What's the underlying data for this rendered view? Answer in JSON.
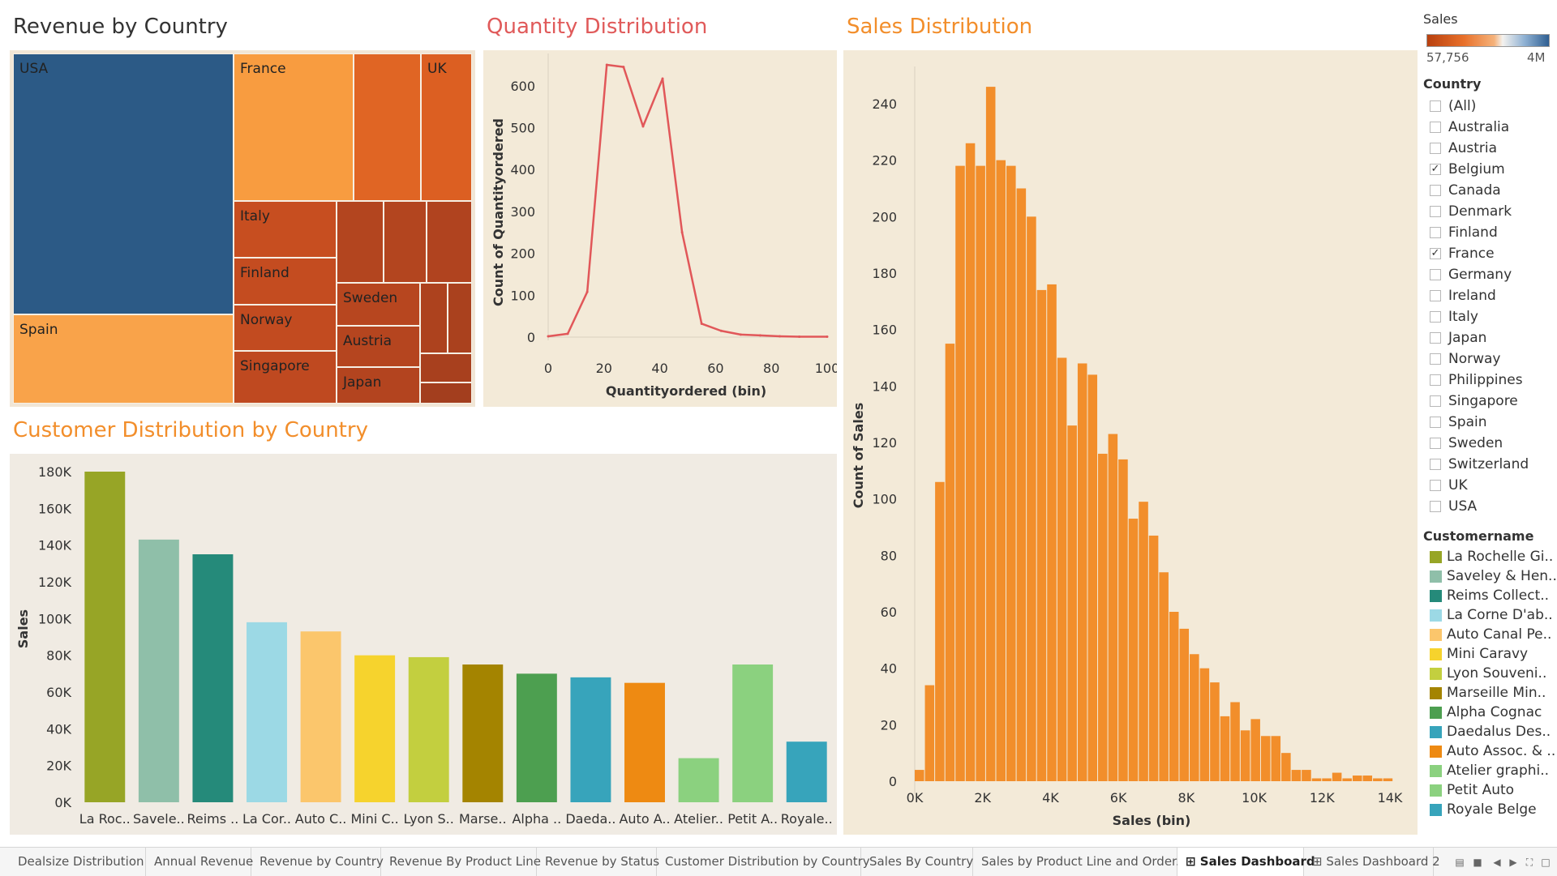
{
  "sheets": {
    "revenue_by_country": "Revenue by Country",
    "quantity_distribution": "Quantity Distribution",
    "sales_distribution": "Sales Distribution",
    "customer_distribution": "Customer Distribution by Country"
  },
  "colors": {
    "treemap_title": "#333333",
    "quantity_title": "#e05a5a",
    "sales_title": "#f28e2b",
    "customer_title": "#f28e2b"
  },
  "chart_data": [
    {
      "type": "treemap",
      "title": "Revenue by Country",
      "cells": [
        {
          "label": "USA",
          "color": "#2c5a86"
        },
        {
          "label": "France",
          "color": "#f89c40"
        },
        {
          "label": "",
          "color": "#e06524"
        },
        {
          "label": "UK",
          "color": "#dc5f22"
        },
        {
          "label": "Spain",
          "color": "#f9a34a"
        },
        {
          "label": "Italy",
          "color": "#c74e20"
        },
        {
          "label": "Finland",
          "color": "#c44c20"
        },
        {
          "label": "Norway",
          "color": "#c24b20"
        },
        {
          "label": "Singapore",
          "color": "#bf4920"
        },
        {
          "label": "",
          "color": "#b3451f"
        },
        {
          "label": "",
          "color": "#b3451f"
        },
        {
          "label": "",
          "color": "#b0431f"
        },
        {
          "label": "Sweden",
          "color": "#b7461f"
        },
        {
          "label": "Austria",
          "color": "#b5451f"
        },
        {
          "label": "Japan",
          "color": "#b3441f"
        },
        {
          "label": "",
          "color": "#ad421e"
        },
        {
          "label": "",
          "color": "#aa411e"
        },
        {
          "label": "",
          "color": "#a8401e"
        },
        {
          "label": "",
          "color": "#a33e1e"
        }
      ]
    },
    {
      "type": "line",
      "title": "Quantity Distribution",
      "xlabel": "Quantityordered (bin)",
      "ylabel": "Count of Quantityordered",
      "x": [
        0,
        7,
        14,
        21,
        27,
        34,
        41,
        48,
        55,
        62,
        69,
        76,
        83,
        90,
        100
      ],
      "y": [
        2,
        8,
        108,
        650,
        645,
        503,
        617,
        250,
        32,
        15,
        6,
        4,
        2,
        1,
        1
      ],
      "xlim": [
        0,
        100
      ],
      "ylim": [
        0,
        650
      ],
      "xticks": [
        "0",
        "20",
        "40",
        "60",
        "80",
        "100"
      ],
      "yticks": [
        "0",
        "100",
        "200",
        "300",
        "400",
        "500",
        "600"
      ],
      "color": "#e15759"
    },
    {
      "type": "bar",
      "title": "Sales Distribution",
      "xlabel": "Sales (bin)",
      "ylabel": "Count of Sales",
      "x_start": 0,
      "bin_width": 300,
      "values": [
        0,
        0,
        0,
        0,
        0,
        0,
        0,
        0,
        0,
        0,
        0,
        0,
        0,
        0,
        0,
        0,
        0,
        0,
        0,
        0,
        0,
        0,
        0,
        0,
        0,
        0,
        0,
        0,
        0,
        0,
        0,
        0,
        0,
        0,
        0,
        0,
        0,
        0,
        0,
        0,
        0,
        0,
        0,
        0,
        0,
        0,
        0
      ],
      "counts": [
        4,
        34,
        106,
        155,
        218,
        226,
        218,
        246,
        220,
        218,
        210,
        200,
        174,
        176,
        150,
        126,
        148,
        144,
        116,
        123,
        114,
        93,
        99,
        87,
        74,
        60,
        54,
        45,
        40,
        35,
        23,
        28,
        18,
        22,
        16,
        16,
        10,
        4,
        4,
        1,
        1,
        3,
        1,
        2,
        2,
        1,
        1
      ],
      "xticks": [
        "0K",
        "2K",
        "4K",
        "6K",
        "8K",
        "10K",
        "12K",
        "14K"
      ],
      "yticks": [
        "0",
        "20",
        "40",
        "60",
        "80",
        "100",
        "120",
        "140",
        "160",
        "180",
        "200",
        "220",
        "240"
      ],
      "xlim": [
        0,
        14000
      ],
      "ylim": [
        0,
        250
      ],
      "color": "#f28e2b"
    },
    {
      "type": "bar",
      "title": "Customer Distribution by Country",
      "xlabel": "",
      "ylabel": "Sales",
      "categories": [
        "La Roc..",
        "Savele..",
        "Reims ..",
        "La Cor..",
        "Auto C..",
        "Mini C..",
        "Lyon S..",
        "Marse..",
        "Alpha ..",
        "Daeda..",
        "Auto A..",
        "Atelier..",
        "Petit A..",
        "Royale.."
      ],
      "values": [
        180000,
        143000,
        135000,
        98000,
        93000,
        80000,
        79000,
        75000,
        70000,
        68000,
        65000,
        24000,
        75000,
        33000
      ],
      "colors": [
        "#97a526",
        "#8fbfa9",
        "#258a7a",
        "#9cd9e5",
        "#fbc66c",
        "#f6d32d",
        "#c3cf3f",
        "#a48400",
        "#4d9f50",
        "#37a4bb",
        "#ee8a12",
        "#8bd17f",
        "#8bd17f",
        "#37a4bb"
      ],
      "yticks": [
        "0K",
        "20K",
        "40K",
        "60K",
        "80K",
        "100K",
        "120K",
        "140K",
        "160K",
        "180K"
      ],
      "ylim": [
        0,
        180000
      ]
    }
  ],
  "legend": {
    "sales_title": "Sales",
    "sales_min": "57,756",
    "sales_max": "4M",
    "country_title": "Country",
    "countries": [
      {
        "label": "(All)",
        "checked": false
      },
      {
        "label": "Australia",
        "checked": false
      },
      {
        "label": "Austria",
        "checked": false
      },
      {
        "label": "Belgium",
        "checked": true
      },
      {
        "label": "Canada",
        "checked": false
      },
      {
        "label": "Denmark",
        "checked": false
      },
      {
        "label": "Finland",
        "checked": false
      },
      {
        "label": "France",
        "checked": true
      },
      {
        "label": "Germany",
        "checked": false
      },
      {
        "label": "Ireland",
        "checked": false
      },
      {
        "label": "Italy",
        "checked": false
      },
      {
        "label": "Japan",
        "checked": false
      },
      {
        "label": "Norway",
        "checked": false
      },
      {
        "label": "Philippines",
        "checked": false
      },
      {
        "label": "Singapore",
        "checked": false
      },
      {
        "label": "Spain",
        "checked": false
      },
      {
        "label": "Sweden",
        "checked": false
      },
      {
        "label": "Switzerland",
        "checked": false
      },
      {
        "label": "UK",
        "checked": false
      },
      {
        "label": "USA",
        "checked": false
      }
    ],
    "customer_title": "Customername",
    "customers": [
      {
        "label": "La Rochelle Gi..",
        "color": "#97a526"
      },
      {
        "label": "Saveley & Hen..",
        "color": "#8fbfa9"
      },
      {
        "label": "Reims Collect..",
        "color": "#258a7a"
      },
      {
        "label": "La Corne D'ab..",
        "color": "#9cd9e5"
      },
      {
        "label": "Auto Canal Pe..",
        "color": "#fbc66c"
      },
      {
        "label": "Mini Caravy",
        "color": "#f6d32d"
      },
      {
        "label": "Lyon Souveni..",
        "color": "#c3cf3f"
      },
      {
        "label": "Marseille Min..",
        "color": "#a48400"
      },
      {
        "label": "Alpha Cognac",
        "color": "#4d9f50"
      },
      {
        "label": "Daedalus Des..",
        "color": "#37a4bb"
      },
      {
        "label": "Auto Assoc. & ..",
        "color": "#ee8a12"
      },
      {
        "label": "Atelier graphi..",
        "color": "#8bd17f"
      },
      {
        "label": "Petit Auto",
        "color": "#8bd17f"
      },
      {
        "label": "Royale Belge",
        "color": "#37a4bb"
      }
    ]
  },
  "tabs": [
    {
      "label": "Dealsize Distribution",
      "active": false,
      "icon": ""
    },
    {
      "label": "Annual Revenue",
      "active": false,
      "icon": ""
    },
    {
      "label": "Revenue by Country",
      "active": false,
      "icon": ""
    },
    {
      "label": "Revenue By Product Line",
      "active": false,
      "icon": ""
    },
    {
      "label": "Revenue by Status",
      "active": false,
      "icon": ""
    },
    {
      "label": "Customer Distribution by Country",
      "active": false,
      "icon": ""
    },
    {
      "label": "Sales By Country",
      "active": false,
      "icon": ""
    },
    {
      "label": "Sales by Product Line and Order...",
      "active": false,
      "icon": ""
    },
    {
      "label": "Sales Dashboard",
      "active": true,
      "icon": "dashboard-grid-icon"
    },
    {
      "label": "Sales Dashboard 2",
      "active": false,
      "icon": "dashboard-grid-icon"
    }
  ]
}
